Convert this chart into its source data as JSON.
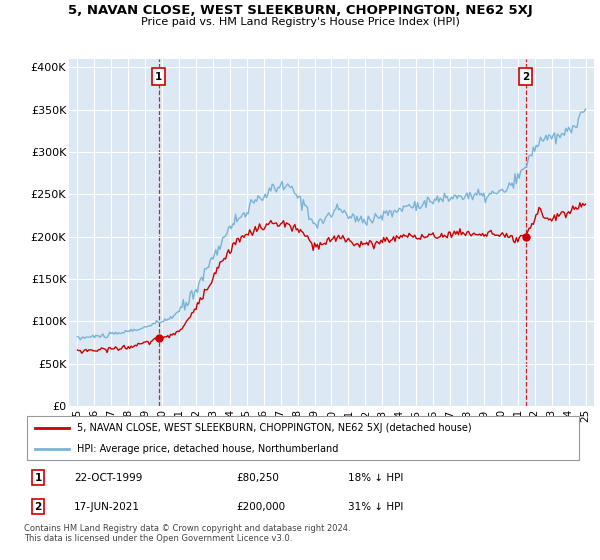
{
  "title": "5, NAVAN CLOSE, WEST SLEEKBURN, CHOPPINGTON, NE62 5XJ",
  "subtitle": "Price paid vs. HM Land Registry's House Price Index (HPI)",
  "legend_line1": "5, NAVAN CLOSE, WEST SLEEKBURN, CHOPPINGTON, NE62 5XJ (detached house)",
  "legend_line2": "HPI: Average price, detached house, Northumberland",
  "sale1_date": "22-OCT-1999",
  "sale1_price": "£80,250",
  "sale1_hpi": "18% ↓ HPI",
  "sale2_date": "17-JUN-2021",
  "sale2_price": "£200,000",
  "sale2_hpi": "31% ↓ HPI",
  "footer": "Contains HM Land Registry data © Crown copyright and database right 2024.\nThis data is licensed under the Open Government Licence v3.0.",
  "hpi_color": "#7ab3d4",
  "price_color": "#cc0000",
  "sale_marker_color": "#cc0000",
  "background_color": "#ffffff",
  "plot_bg_color": "#dce9f5",
  "grid_color": "#ffffff",
  "ylim": [
    0,
    410000
  ],
  "yticks": [
    0,
    50000,
    100000,
    150000,
    200000,
    250000,
    300000,
    350000,
    400000
  ],
  "ytick_labels": [
    "£0",
    "£50K",
    "£100K",
    "£150K",
    "£200K",
    "£250K",
    "£300K",
    "£350K",
    "£400K"
  ]
}
